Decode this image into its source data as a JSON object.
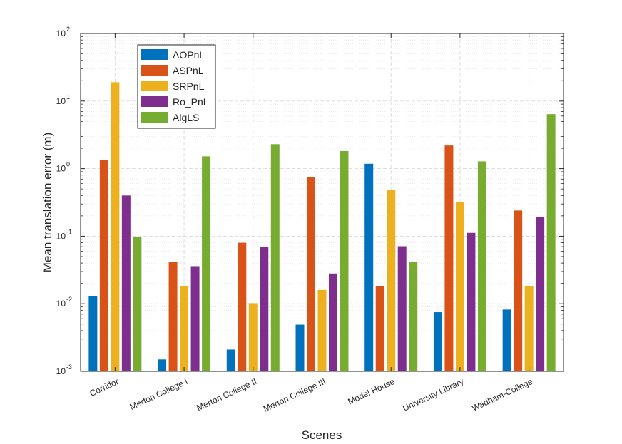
{
  "chart_data": {
    "type": "bar",
    "title": "",
    "xlabel": "Scenes",
    "ylabel": "Mean translation error (m)",
    "yscale": "log",
    "ylim": [
      0.001,
      100
    ],
    "grid": true,
    "legend_position": "top-left",
    "categories": [
      "Corridor",
      "Merton College I",
      "Merton College II",
      "Merton College III",
      "Model House",
      "University Library",
      "Wadham-College"
    ],
    "y_ticks": [
      {
        "base": "10",
        "exp": "-3"
      },
      {
        "base": "10",
        "exp": "-2"
      },
      {
        "base": "10",
        "exp": "-1"
      },
      {
        "base": "10",
        "exp": "0"
      },
      {
        "base": "10",
        "exp": "1"
      },
      {
        "base": "10",
        "exp": "2"
      }
    ],
    "series": [
      {
        "name": "AOPnL",
        "color": "#0072BD",
        "values": [
          0.013,
          0.0015,
          0.0021,
          0.0049,
          1.18,
          0.0075,
          0.0082
        ]
      },
      {
        "name": "ASPnL",
        "color": "#D95319",
        "values": [
          1.35,
          0.042,
          0.08,
          0.75,
          0.018,
          2.2,
          0.24
        ]
      },
      {
        "name": "SRPnL",
        "color": "#EDB120",
        "values": [
          19.0,
          0.018,
          0.0102,
          0.016,
          0.48,
          0.32,
          0.018
        ]
      },
      {
        "name": "Ro_PnL",
        "color": "#7E2F8E",
        "values": [
          0.4,
          0.036,
          0.07,
          0.028,
          0.071,
          0.112,
          0.19
        ]
      },
      {
        "name": "AlgLS",
        "color": "#77AC30",
        "values": [
          0.097,
          1.52,
          2.3,
          1.82,
          0.042,
          1.28,
          6.4
        ]
      }
    ]
  }
}
